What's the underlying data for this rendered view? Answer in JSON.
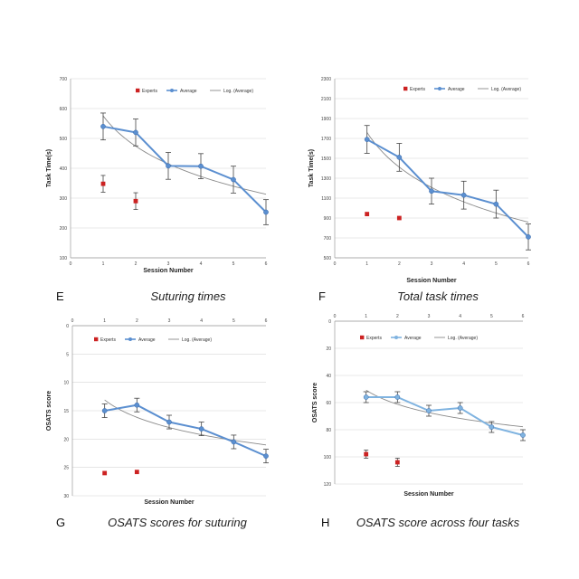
{
  "colors": {
    "average": "#5b8fd0",
    "average_light": "#7fb3e0",
    "experts": "#cc2222",
    "log_fit": "#8a8a8a",
    "grid": "#d6d6d6",
    "axis": "#9a9a9a",
    "errorbar": "#444444"
  },
  "chart_data": [
    {
      "type": "line",
      "panel_letter": "E",
      "caption": "Suturing times",
      "xlabel": "Session Number",
      "ylabel": "Task Time(s)",
      "xlim": [
        0,
        6
      ],
      "ylim": [
        100,
        700
      ],
      "xticks": [
        0,
        1,
        2,
        3,
        4,
        5,
        6
      ],
      "yticks": [
        100,
        200,
        300,
        400,
        500,
        600,
        700
      ],
      "y_inverted": false,
      "x_axis_position": "bottom",
      "grid": "horizontal",
      "legend": [
        "Experts",
        "Average",
        "Log. (Average)"
      ],
      "legend_position": "top-left",
      "series": [
        {
          "name": "Average",
          "kind": "line-markers",
          "x": [
            1,
            2,
            3,
            4,
            5,
            6
          ],
          "y": [
            540,
            520,
            408,
            407,
            362,
            253
          ],
          "err": [
            45,
            45,
            45,
            42,
            45,
            42
          ]
        },
        {
          "name": "Experts",
          "kind": "markers",
          "x": [
            1,
            2
          ],
          "y": [
            348,
            290
          ],
          "err": [
            28,
            28
          ]
        },
        {
          "name": "Log. (Average)",
          "kind": "log-fit",
          "x": [
            1,
            6
          ]
        }
      ]
    },
    {
      "type": "line",
      "panel_letter": "F",
      "caption": "Total task times",
      "xlabel": "Session Number",
      "ylabel": "Task Time(s)",
      "xlim": [
        0,
        6
      ],
      "ylim": [
        500,
        2300
      ],
      "xticks": [
        0,
        1,
        2,
        3,
        4,
        5,
        6
      ],
      "yticks": [
        500,
        700,
        900,
        1100,
        1300,
        1500,
        1700,
        1900,
        2100,
        2300
      ],
      "y_inverted": false,
      "x_axis_position": "bottom",
      "grid": "horizontal",
      "legend": [
        "Experts",
        "Average",
        "Log. (Average)"
      ],
      "legend_position": "top-left",
      "series": [
        {
          "name": "Average",
          "kind": "line-markers",
          "x": [
            1,
            2,
            3,
            4,
            5,
            6
          ],
          "y": [
            1690,
            1510,
            1170,
            1130,
            1040,
            710
          ],
          "err": [
            140,
            140,
            130,
            140,
            140,
            130
          ]
        },
        {
          "name": "Experts",
          "kind": "markers",
          "x": [
            1,
            2
          ],
          "y": [
            940,
            900
          ],
          "err": [
            0,
            0
          ]
        },
        {
          "name": "Log. (Average)",
          "kind": "log-fit",
          "x": [
            1,
            6
          ]
        }
      ]
    },
    {
      "type": "line",
      "panel_letter": "G",
      "caption": "OSATS scores for suturing",
      "xlabel": "Session Number",
      "ylabel": "OSATS score",
      "xlim": [
        0,
        6
      ],
      "ylim": [
        0,
        30
      ],
      "xticks": [
        0,
        1,
        2,
        3,
        4,
        5,
        6
      ],
      "yticks": [
        0,
        5,
        10,
        15,
        20,
        25,
        30
      ],
      "y_inverted": true,
      "x_axis_position": "top",
      "grid": "horizontal",
      "legend": [
        "Experts",
        "Average",
        "Log. (Average)"
      ],
      "legend_position": "top-left",
      "series": [
        {
          "name": "Average",
          "kind": "line-markers",
          "x": [
            1,
            2,
            3,
            4,
            5,
            6
          ],
          "y": [
            15.0,
            14.0,
            17.0,
            18.2,
            20.5,
            23.0
          ],
          "err": [
            1.2,
            1.2,
            1.2,
            1.2,
            1.2,
            1.2
          ]
        },
        {
          "name": "Experts",
          "kind": "markers",
          "x": [
            1,
            2
          ],
          "y": [
            26.0,
            25.8
          ],
          "err": [
            0,
            0
          ]
        },
        {
          "name": "Log. (Average)",
          "kind": "log-fit",
          "x": [
            1,
            6
          ]
        }
      ]
    },
    {
      "type": "line",
      "panel_letter": "H",
      "caption": "OSATS score across four tasks",
      "xlabel": "Session Number",
      "ylabel": "OSATS score",
      "xlim": [
        0,
        6
      ],
      "ylim": [
        0,
        120
      ],
      "xticks": [
        0,
        1,
        2,
        3,
        4,
        5,
        6
      ],
      "yticks": [
        0,
        20,
        40,
        60,
        80,
        100,
        120
      ],
      "y_inverted": true,
      "x_axis_position": "top",
      "grid": "horizontal",
      "legend": [
        "Experts",
        "Average",
        "Log. (Average)"
      ],
      "legend_position": "top-left",
      "series": [
        {
          "name": "Average",
          "kind": "line-markers",
          "x": [
            1,
            2,
            3,
            4,
            5,
            6
          ],
          "y": [
            56,
            56,
            66,
            64,
            78,
            84
          ],
          "err": [
            4,
            4,
            4,
            4,
            4,
            4
          ]
        },
        {
          "name": "Experts",
          "kind": "markers",
          "x": [
            1,
            2
          ],
          "y": [
            98,
            104
          ],
          "err": [
            3,
            3
          ]
        },
        {
          "name": "Log. (Average)",
          "kind": "log-fit",
          "x": [
            1,
            6
          ]
        }
      ]
    }
  ]
}
